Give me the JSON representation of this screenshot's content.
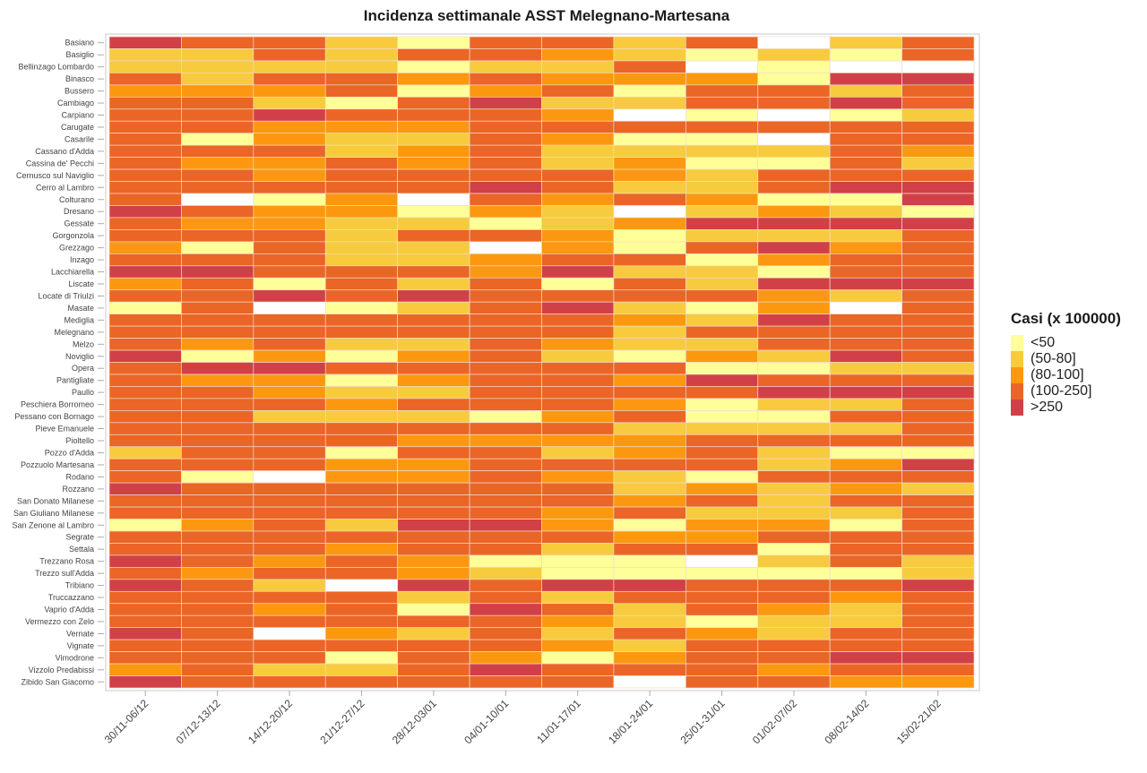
{
  "chart_data": {
    "type": "heatmap",
    "title": "Incidenza settimanale ASST Melegnano-Martesana",
    "xlabel": "",
    "ylabel": "",
    "legend": {
      "title": "Casi (x 100000)",
      "placement": "right",
      "categories": [
        {
          "label": "<50",
          "color": "#FFFF99"
        },
        {
          "label": "(50-80]",
          "color": "#F7CB3D"
        },
        {
          "label": "(80-100]",
          "color": "#FC9810"
        },
        {
          "label": "(100-250]",
          "color": "#EB6526"
        },
        {
          "label": ">250",
          "color": "#D24047"
        }
      ]
    },
    "missing_color": "#FFFFFF",
    "x": [
      "30/11-06/12",
      "07/12-13/12",
      "14/12-20/12",
      "21/12-27/12",
      "28/12-03/01",
      "04/01-10/01",
      "11/01-17/01",
      "18/01-24/01",
      "25/01-31/01",
      "01/02-07/02",
      "08/02-14/02",
      "15/02-21/02"
    ],
    "y": [
      "Basiano",
      "Basiglio",
      "Bellinzago Lombardo",
      "Binasco",
      "Bussero",
      "Cambiago",
      "Carpiano",
      "Carugate",
      "Casarile",
      "Cassano d'Adda",
      "Cassina de' Pecchi",
      "Cernusco sul Naviglio",
      "Cerro al Lambro",
      "Colturano",
      "Dresano",
      "Gessate",
      "Gorgonzola",
      "Grezzago",
      "Inzago",
      "Lacchiarella",
      "Liscate",
      "Locate di Triulzi",
      "Masate",
      "Mediglia",
      "Melegnano",
      "Melzo",
      "Noviglio",
      "Opera",
      "Pantigliate",
      "Paullo",
      "Peschiera Borromeo",
      "Pessano con Bornago",
      "Pieve Emanuele",
      "Pioltello",
      "Pozzo d'Adda",
      "Pozzuolo Martesana",
      "Rodano",
      "Rozzano",
      "San Donato Milanese",
      "San Giuliano Milanese",
      "San Zenone al Lambro",
      "Segrate",
      "Settala",
      "Trezzano Rosa",
      "Trezzo sull'Adda",
      "Tribiano",
      "Truccazzano",
      "Vaprio d'Adda",
      "Vermezzo con Zelo",
      "Vernate",
      "Vignate",
      "Vimodrone",
      "Vizzolo Predabissi",
      "Zibido San Giacomo"
    ],
    "values_note": "category index into legend.categories; null = no data (white)",
    "values": [
      [
        4,
        3,
        3,
        1,
        0,
        3,
        3,
        1,
        3,
        null,
        1,
        3
      ],
      [
        1,
        1,
        3,
        1,
        3,
        3,
        2,
        1,
        0,
        1,
        0,
        3
      ],
      [
        1,
        1,
        1,
        1,
        0,
        1,
        1,
        3,
        null,
        0,
        null,
        null
      ],
      [
        3,
        1,
        3,
        3,
        2,
        3,
        2,
        2,
        2,
        0,
        4,
        4
      ],
      [
        2,
        2,
        2,
        3,
        0,
        2,
        3,
        0,
        3,
        3,
        1,
        3
      ],
      [
        3,
        3,
        1,
        0,
        3,
        4,
        1,
        1,
        3,
        3,
        4,
        3
      ],
      [
        3,
        3,
        4,
        3,
        3,
        3,
        2,
        null,
        0,
        null,
        0,
        1
      ],
      [
        3,
        3,
        2,
        2,
        2,
        3,
        3,
        3,
        3,
        3,
        3,
        3
      ],
      [
        3,
        0,
        2,
        1,
        1,
        3,
        2,
        0,
        0,
        null,
        3,
        3
      ],
      [
        3,
        3,
        3,
        1,
        2,
        3,
        1,
        1,
        1,
        1,
        3,
        2
      ],
      [
        3,
        2,
        2,
        3,
        2,
        3,
        1,
        2,
        0,
        0,
        3,
        1
      ],
      [
        3,
        3,
        2,
        3,
        3,
        3,
        3,
        2,
        1,
        3,
        3,
        3
      ],
      [
        3,
        3,
        3,
        3,
        3,
        4,
        3,
        1,
        1,
        3,
        4,
        4
      ],
      [
        3,
        null,
        0,
        2,
        null,
        3,
        2,
        3,
        2,
        0,
        0,
        4
      ],
      [
        4,
        3,
        2,
        2,
        0,
        2,
        1,
        null,
        1,
        2,
        1,
        0
      ],
      [
        3,
        2,
        2,
        1,
        1,
        0,
        1,
        2,
        4,
        4,
        4,
        4
      ],
      [
        3,
        3,
        3,
        1,
        3,
        3,
        2,
        0,
        1,
        1,
        1,
        3
      ],
      [
        2,
        0,
        3,
        1,
        1,
        null,
        2,
        0,
        3,
        4,
        2,
        3
      ],
      [
        3,
        3,
        3,
        1,
        1,
        2,
        3,
        3,
        0,
        2,
        3,
        3
      ],
      [
        4,
        4,
        3,
        3,
        3,
        2,
        4,
        1,
        1,
        0,
        3,
        3
      ],
      [
        2,
        3,
        0,
        3,
        1,
        3,
        0,
        3,
        1,
        4,
        4,
        4
      ],
      [
        3,
        3,
        4,
        3,
        4,
        3,
        3,
        3,
        3,
        2,
        1,
        3
      ],
      [
        0,
        3,
        null,
        0,
        1,
        3,
        4,
        1,
        0,
        2,
        null,
        3
      ],
      [
        3,
        3,
        3,
        3,
        3,
        3,
        3,
        2,
        1,
        4,
        3,
        3
      ],
      [
        3,
        3,
        3,
        3,
        3,
        3,
        3,
        1,
        3,
        3,
        3,
        3
      ],
      [
        3,
        2,
        3,
        1,
        1,
        3,
        2,
        1,
        1,
        3,
        3,
        3
      ],
      [
        4,
        0,
        2,
        0,
        2,
        3,
        1,
        0,
        2,
        1,
        4,
        3
      ],
      [
        3,
        4,
        4,
        3,
        3,
        3,
        3,
        3,
        0,
        0,
        1,
        1
      ],
      [
        3,
        2,
        2,
        0,
        2,
        3,
        3,
        2,
        4,
        3,
        3,
        3
      ],
      [
        3,
        3,
        2,
        1,
        1,
        3,
        3,
        3,
        3,
        4,
        4,
        4
      ],
      [
        3,
        3,
        3,
        2,
        3,
        3,
        3,
        2,
        0,
        1,
        1,
        3
      ],
      [
        3,
        3,
        1,
        1,
        1,
        0,
        2,
        3,
        0,
        0,
        3,
        3
      ],
      [
        3,
        3,
        3,
        3,
        3,
        3,
        3,
        1,
        1,
        1,
        1,
        3
      ],
      [
        3,
        3,
        3,
        3,
        2,
        2,
        2,
        2,
        3,
        3,
        3,
        3
      ],
      [
        1,
        3,
        3,
        0,
        3,
        3,
        1,
        2,
        3,
        1,
        0,
        0
      ],
      [
        3,
        3,
        3,
        2,
        2,
        3,
        3,
        3,
        3,
        1,
        2,
        4
      ],
      [
        3,
        0,
        null,
        2,
        2,
        3,
        2,
        1,
        0,
        3,
        3,
        3
      ],
      [
        4,
        3,
        3,
        3,
        3,
        3,
        3,
        1,
        2,
        1,
        2,
        1
      ],
      [
        3,
        3,
        3,
        3,
        3,
        3,
        3,
        2,
        3,
        1,
        3,
        3
      ],
      [
        3,
        3,
        3,
        3,
        3,
        3,
        2,
        3,
        1,
        1,
        1,
        3
      ],
      [
        0,
        2,
        3,
        1,
        4,
        4,
        2,
        0,
        2,
        2,
        0,
        3
      ],
      [
        3,
        3,
        3,
        3,
        3,
        3,
        3,
        2,
        2,
        3,
        3,
        3
      ],
      [
        3,
        3,
        3,
        2,
        3,
        3,
        1,
        3,
        3,
        0,
        3,
        3
      ],
      [
        4,
        3,
        2,
        3,
        2,
        0,
        0,
        0,
        null,
        1,
        3,
        1
      ],
      [
        3,
        2,
        3,
        3,
        2,
        1,
        0,
        0,
        0,
        0,
        0,
        1
      ],
      [
        4,
        3,
        1,
        null,
        4,
        3,
        4,
        4,
        3,
        3,
        3,
        4
      ],
      [
        3,
        3,
        3,
        3,
        1,
        3,
        1,
        3,
        3,
        3,
        2,
        3
      ],
      [
        3,
        3,
        2,
        3,
        0,
        4,
        3,
        1,
        3,
        2,
        1,
        3
      ],
      [
        3,
        3,
        3,
        3,
        3,
        3,
        2,
        1,
        0,
        1,
        1,
        3
      ],
      [
        4,
        3,
        null,
        2,
        1,
        3,
        1,
        3,
        2,
        1,
        3,
        3
      ],
      [
        3,
        3,
        3,
        3,
        3,
        3,
        2,
        1,
        3,
        3,
        3,
        3
      ],
      [
        3,
        3,
        3,
        0,
        3,
        2,
        0,
        2,
        3,
        3,
        4,
        4
      ],
      [
        2,
        3,
        1,
        1,
        3,
        4,
        3,
        3,
        3,
        2,
        3,
        3
      ],
      [
        4,
        3,
        3,
        3,
        3,
        3,
        3,
        null,
        3,
        3,
        2,
        2
      ]
    ],
    "grid": false
  }
}
